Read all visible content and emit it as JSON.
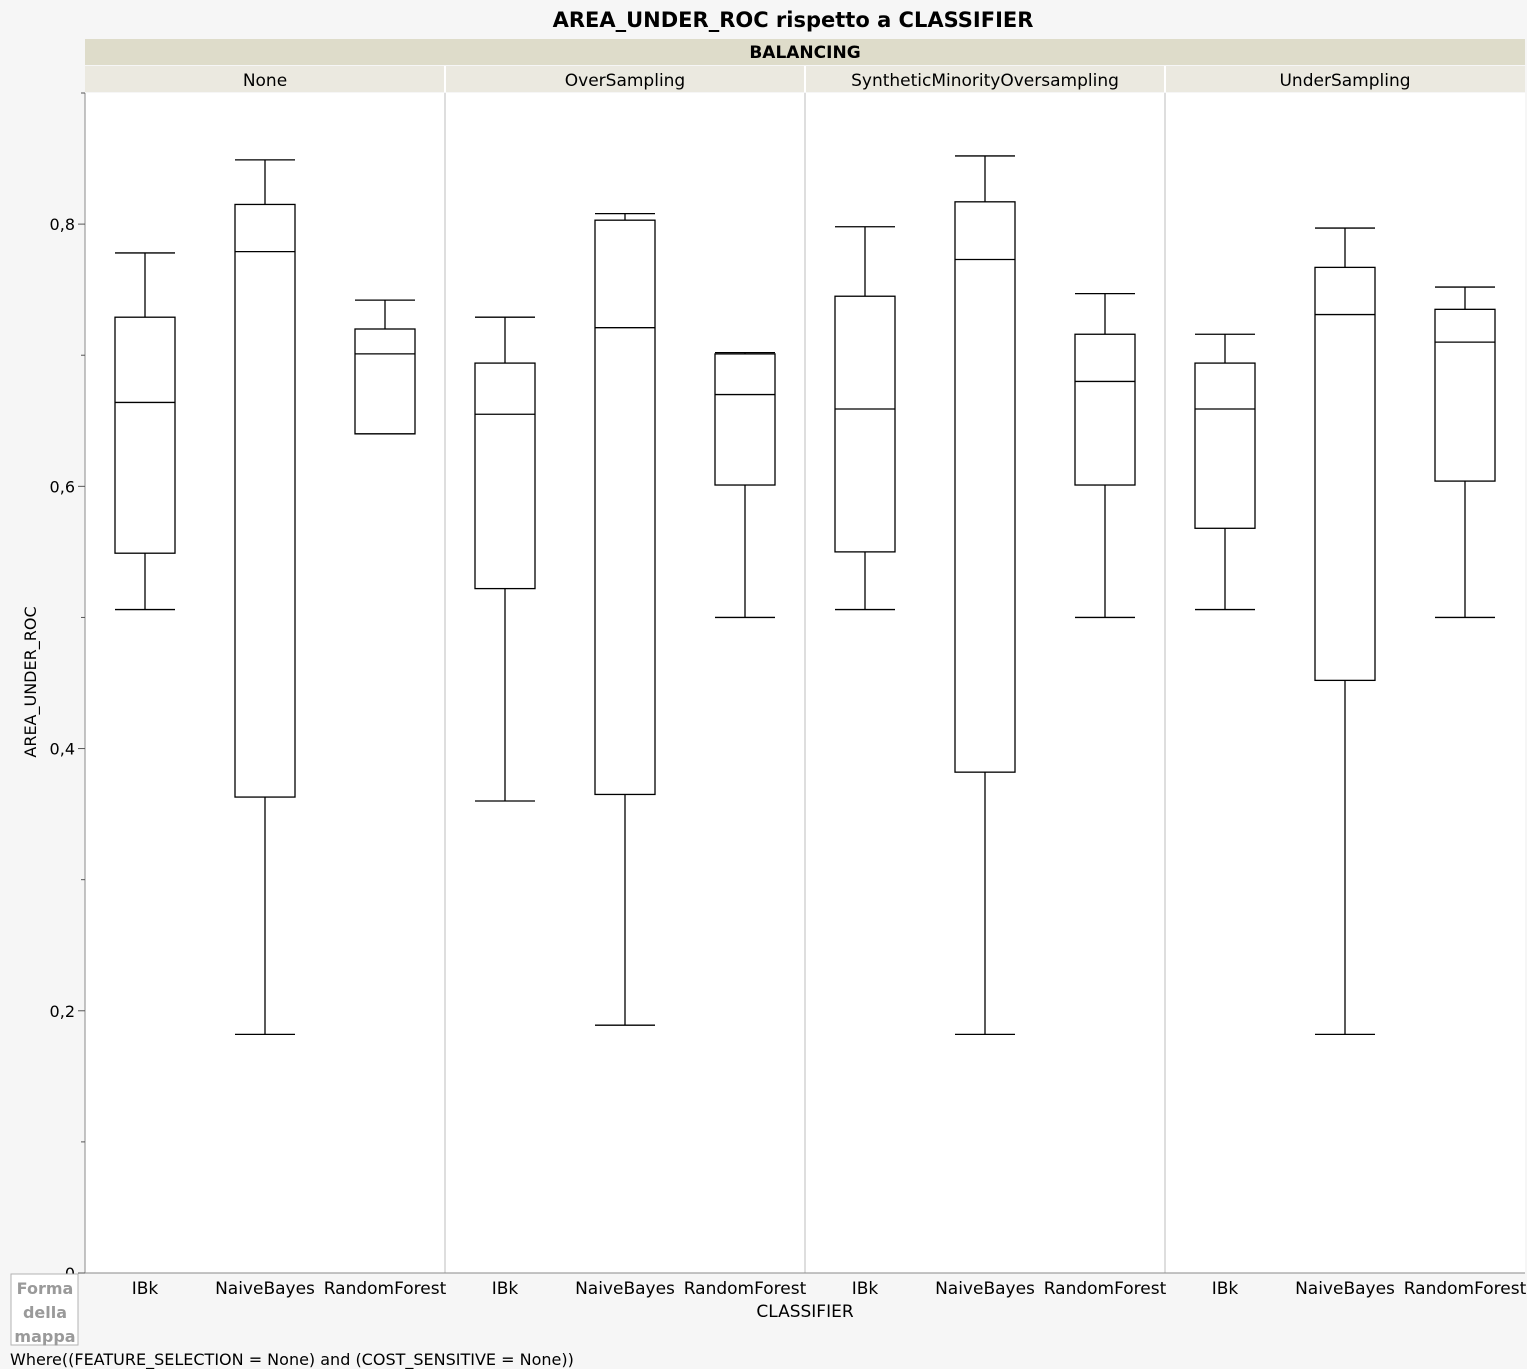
{
  "chart_data": {
    "type": "boxplot",
    "title": "AREA_UNDER_ROC rispetto a CLASSIFIER",
    "group_header": "BALANCING",
    "ylabel": "AREA_UNDER_ROC",
    "xlabel": "CLASSIFIER",
    "ylim": [
      0,
      0.9
    ],
    "y_ticks": [
      {
        "value": 0,
        "label": "0"
      },
      {
        "value": 0.2,
        "label": "0,2"
      },
      {
        "value": 0.4,
        "label": "0,4"
      },
      {
        "value": 0.6,
        "label": "0,6"
      },
      {
        "value": 0.8,
        "label": "0,8"
      }
    ],
    "y_minor_ticks": [
      0.1,
      0.3,
      0.5,
      0.7,
      0.9
    ],
    "categories": [
      "IBk",
      "NaiveBayes",
      "RandomForest"
    ],
    "panels": [
      {
        "name": "None",
        "boxes": [
          {
            "category": "IBk",
            "min": 0.506,
            "q1": 0.549,
            "median": 0.664,
            "q3": 0.729,
            "max": 0.778
          },
          {
            "category": "NaiveBayes",
            "min": 0.182,
            "q1": 0.363,
            "median": 0.779,
            "q3": 0.815,
            "max": 0.849
          },
          {
            "category": "RandomForest",
            "min": 0.64,
            "q1": 0.64,
            "median": 0.701,
            "q3": 0.72,
            "max": 0.742
          }
        ]
      },
      {
        "name": "OverSampling",
        "boxes": [
          {
            "category": "IBk",
            "min": 0.36,
            "q1": 0.522,
            "median": 0.655,
            "q3": 0.694,
            "max": 0.729
          },
          {
            "category": "NaiveBayes",
            "min": 0.189,
            "q1": 0.365,
            "median": 0.721,
            "q3": 0.803,
            "max": 0.808
          },
          {
            "category": "RandomForest",
            "min": 0.5,
            "q1": 0.601,
            "median": 0.67,
            "q3": 0.701,
            "max": 0.702
          }
        ]
      },
      {
        "name": "SyntheticMinorityOversampling",
        "boxes": [
          {
            "category": "IBk",
            "min": 0.506,
            "q1": 0.55,
            "median": 0.659,
            "q3": 0.745,
            "max": 0.798
          },
          {
            "category": "NaiveBayes",
            "min": 0.182,
            "q1": 0.382,
            "median": 0.773,
            "q3": 0.817,
            "max": 0.852
          },
          {
            "category": "RandomForest",
            "min": 0.5,
            "q1": 0.601,
            "median": 0.68,
            "q3": 0.716,
            "max": 0.747
          }
        ]
      },
      {
        "name": "UnderSampling",
        "boxes": [
          {
            "category": "IBk",
            "min": 0.506,
            "q1": 0.568,
            "median": 0.659,
            "q3": 0.694,
            "max": 0.716
          },
          {
            "category": "NaiveBayes",
            "min": 0.182,
            "q1": 0.452,
            "median": 0.731,
            "q3": 0.767,
            "max": 0.797
          },
          {
            "category": "RandomForest",
            "min": 0.5,
            "q1": 0.604,
            "median": 0.71,
            "q3": 0.735,
            "max": 0.752
          }
        ]
      }
    ]
  },
  "legend": {
    "label_lines": [
      "Forma",
      "della",
      "mappa"
    ]
  },
  "footer": {
    "where_clause": "Where((FEATURE_SELECTION = None) and (COST_SENSITIVE = None))"
  },
  "colors": {
    "header_fill": "#dedcca",
    "subheader_fill": "#ebe9e0",
    "plot_bg": "#ffffff",
    "page_bg": "#f6f6f6",
    "stroke": "#000000",
    "divider": "#d4d4d4"
  }
}
